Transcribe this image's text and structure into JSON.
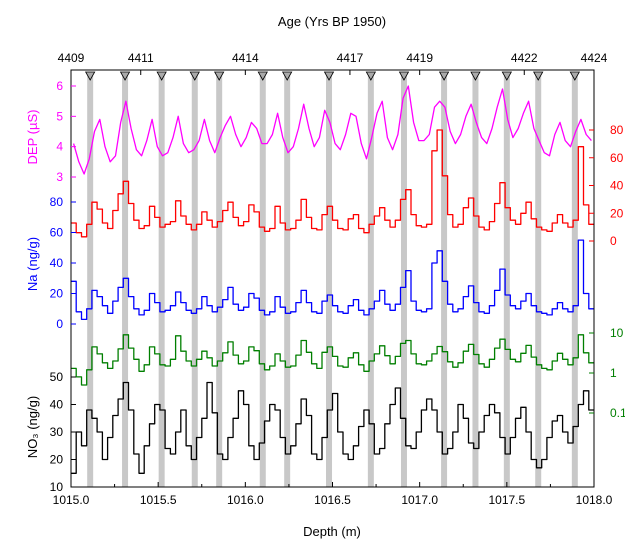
{
  "chart_data": {
    "type": "line",
    "top_axis": {
      "label": "Age (Yrs BP 1950)",
      "range": [
        4409,
        4424
      ],
      "ticks": [
        "4409",
        "4411",
        "4414",
        "4417",
        "4419",
        "4422",
        "4424"
      ]
    },
    "x_axis": {
      "label": "Depth (m)",
      "range": [
        1015.0,
        1018.0
      ],
      "ticks": [
        "1015.0",
        "1015.5",
        "1016.0",
        "1016.5",
        "1017.0",
        "1017.5",
        "1018.0"
      ]
    },
    "markers": [
      1015.11,
      1015.31,
      1015.52,
      1015.71,
      1015.85,
      1016.1,
      1016.24,
      1016.48,
      1016.72,
      1016.91,
      1017.14,
      1017.32,
      1017.5,
      1017.68,
      1017.89
    ],
    "series": [
      {
        "key": "dep",
        "color": "#ff00ff",
        "side": "left",
        "axis_color": "#ff00ff",
        "label": "DEP (µS)",
        "ticks": [
          "3",
          "4",
          "5",
          "6"
        ],
        "values": [
          4.1,
          3.5,
          3.1,
          3.6,
          4.5,
          4.9,
          4.0,
          3.5,
          3.7,
          4.8,
          5.5,
          4.6,
          3.9,
          3.7,
          4.2,
          4.9,
          4.0,
          3.7,
          3.8,
          4.3,
          5.0,
          4.1,
          3.8,
          3.9,
          4.2,
          4.9,
          4.2,
          3.8,
          4.3,
          4.7,
          5.0,
          4.4,
          4.0,
          4.3,
          4.8,
          4.6,
          4.1,
          4.1,
          4.4,
          5.1,
          4.3,
          3.8,
          4.0,
          4.6,
          5.4,
          4.6,
          4.0,
          4.3,
          5.2,
          4.8,
          4.1,
          3.9,
          4.4,
          5.1,
          5.0,
          4.1,
          3.6,
          4.3,
          5.1,
          5.5,
          4.3,
          3.9,
          4.4,
          5.6,
          6.0,
          4.8,
          4.2,
          4.2,
          4.4,
          5.3,
          5.5,
          5.3,
          4.5,
          4.1,
          4.4,
          5.0,
          5.4,
          4.8,
          4.3,
          4.1,
          4.6,
          5.3,
          5.9,
          4.9,
          4.3,
          4.6,
          5.1,
          5.5,
          4.6,
          4.2,
          3.8,
          3.7,
          4.4,
          4.8,
          4.2,
          4.0,
          4.5,
          4.9,
          4.4,
          4.2
        ]
      },
      {
        "key": "red",
        "color": "#ff0000",
        "side": "right",
        "axis_color": "#ff0000",
        "label": "",
        "ticks": [
          "0",
          "20",
          "40",
          "60",
          "80"
        ],
        "values": [
          13,
          6,
          3,
          12,
          28,
          23,
          13,
          9,
          22,
          34,
          43,
          27,
          15,
          9,
          11,
          25,
          17,
          10,
          12,
          14,
          29,
          18,
          12,
          8,
          12,
          21,
          15,
          10,
          14,
          22,
          28,
          17,
          11,
          14,
          26,
          21,
          10,
          7,
          9,
          25,
          13,
          8,
          9,
          15,
          30,
          17,
          9,
          8,
          19,
          25,
          15,
          9,
          8,
          16,
          19,
          9,
          6,
          12,
          18,
          24,
          15,
          10,
          15,
          30,
          37,
          19,
          11,
          10,
          12,
          65,
          80,
          47,
          19,
          10,
          12,
          24,
          31,
          18,
          10,
          8,
          14,
          27,
          42,
          24,
          15,
          12,
          20,
          28,
          16,
          10,
          8,
          7,
          13,
          19,
          13,
          10,
          15,
          68,
          26,
          12
        ]
      },
      {
        "key": "na",
        "color": "#0000ff",
        "side": "left",
        "axis_color": "#0000ff",
        "label": "Na (ng/g)",
        "ticks": [
          "0",
          "20",
          "40",
          "60",
          "80"
        ],
        "values": [
          28,
          8,
          3,
          10,
          22,
          18,
          12,
          7,
          15,
          24,
          30,
          18,
          10,
          6,
          9,
          20,
          14,
          8,
          9,
          12,
          21,
          14,
          9,
          7,
          10,
          18,
          12,
          8,
          11,
          16,
          24,
          13,
          9,
          11,
          20,
          17,
          9,
          6,
          8,
          18,
          11,
          7,
          8,
          14,
          22,
          14,
          8,
          7,
          15,
          19,
          12,
          8,
          7,
          12,
          16,
          9,
          6,
          10,
          15,
          22,
          13,
          9,
          13,
          24,
          35,
          15,
          9,
          8,
          10,
          40,
          48,
          28,
          13,
          8,
          10,
          18,
          25,
          14,
          8,
          7,
          12,
          22,
          36,
          19,
          12,
          10,
          15,
          20,
          12,
          8,
          7,
          6,
          10,
          14,
          10,
          8,
          12,
          55,
          20,
          10
        ]
      },
      {
        "key": "green",
        "color": "#007f00",
        "side": "right",
        "axis_color": "#007f00",
        "label": "",
        "ticks": [
          "0.1",
          "1",
          "10"
        ],
        "values": [
          1.3,
          0.8,
          0.5,
          1.2,
          4.5,
          3.0,
          1.8,
          1.3,
          2.0,
          4.0,
          9.0,
          4.2,
          2.2,
          1.1,
          1.6,
          4.5,
          3.0,
          1.6,
          1.5,
          2.2,
          8.5,
          3.5,
          2.0,
          1.5,
          2.2,
          3.5,
          2.4,
          1.5,
          2.0,
          3.2,
          6.0,
          2.8,
          1.7,
          2.0,
          4.5,
          3.6,
          1.7,
          1.2,
          1.5,
          3.0,
          2.0,
          1.4,
          1.5,
          2.8,
          6.5,
          3.3,
          1.7,
          1.3,
          3.3,
          4.5,
          2.6,
          1.5,
          1.4,
          2.4,
          3.2,
          1.6,
          1.1,
          2.0,
          3.0,
          4.8,
          2.7,
          1.7,
          2.6,
          5.5,
          6.5,
          3.0,
          1.7,
          1.6,
          2.0,
          3.0,
          4.6,
          3.4,
          1.9,
          1.4,
          1.8,
          3.5,
          5.2,
          2.9,
          1.7,
          1.4,
          2.2,
          4.2,
          7.0,
          3.9,
          2.2,
          1.9,
          3.1,
          4.9,
          2.5,
          1.6,
          1.3,
          1.2,
          2.0,
          3.1,
          2.2,
          1.6,
          2.4,
          9.0,
          3.2,
          1.8
        ]
      },
      {
        "key": "no3",
        "color": "#000000",
        "side": "left",
        "axis_color": "#000000",
        "label": "NO₃ (ng/g)",
        "ticks": [
          "10",
          "20",
          "30",
          "40",
          "50"
        ],
        "values": [
          15,
          30,
          25,
          38,
          35,
          30,
          20,
          28,
          36,
          42,
          48,
          38,
          22,
          15,
          25,
          33,
          40,
          38,
          24,
          22,
          30,
          38,
          25,
          20,
          28,
          35,
          48,
          37,
          22,
          20,
          28,
          35,
          45,
          40,
          25,
          20,
          26,
          34,
          40,
          38,
          28,
          22,
          25,
          33,
          42,
          36,
          22,
          20,
          28,
          38,
          44,
          30,
          22,
          20,
          25,
          32,
          38,
          33,
          22,
          24,
          33,
          40,
          46,
          35,
          25,
          24,
          30,
          38,
          42,
          38,
          30,
          22,
          24,
          30,
          40,
          35,
          26,
          24,
          30,
          36,
          40,
          37,
          28,
          22,
          28,
          35,
          39,
          30,
          20,
          17,
          20,
          28,
          34,
          36,
          30,
          26,
          32,
          40,
          45,
          38
        ]
      }
    ]
  }
}
